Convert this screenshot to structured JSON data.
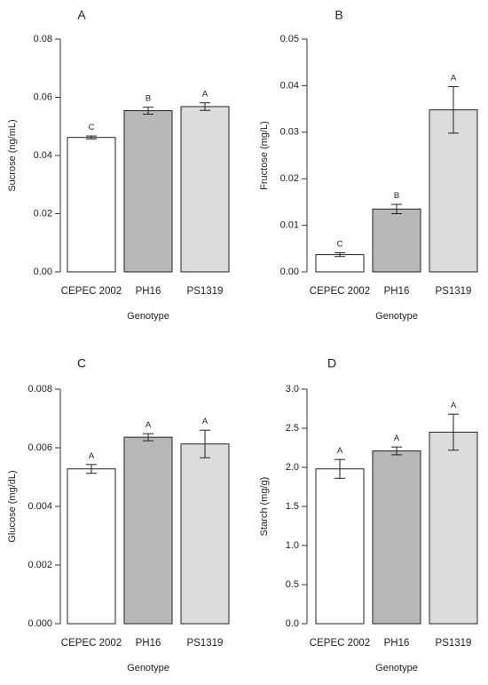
{
  "chart_data": [
    {
      "type": "bar",
      "panel_label": "A",
      "categories": [
        "CEPEC 2002",
        "PH16",
        "PS1319"
      ],
      "values": [
        0.0462,
        0.0554,
        0.0568
      ],
      "errors": [
        0.0005,
        0.0012,
        0.0013
      ],
      "significance": [
        "C",
        "B",
        "A"
      ],
      "colors": [
        "#ffffff",
        "#b7b7b7",
        "#dcdcdc"
      ],
      "xlabel": "Genotype",
      "ylabel": "Sucrose (ng/mL)",
      "ylim": [
        0,
        0.08
      ],
      "yticks": [
        "0.00",
        "0.02",
        "0.04",
        "0.06",
        "0.08"
      ],
      "grid": false
    },
    {
      "type": "bar",
      "panel_label": "B",
      "categories": [
        "CEPEC 2002",
        "PH16",
        "PS1319"
      ],
      "values": [
        0.0037,
        0.0135,
        0.0348
      ],
      "errors": [
        0.0004,
        0.001,
        0.005
      ],
      "significance": [
        "C",
        "B",
        "A"
      ],
      "colors": [
        "#ffffff",
        "#b7b7b7",
        "#dcdcdc"
      ],
      "xlabel": "Genotype",
      "ylabel": "Fructose (mg/L)",
      "ylim": [
        0,
        0.05
      ],
      "yticks": [
        "0.00",
        "0.01",
        "0.02",
        "0.03",
        "0.04",
        "0.05"
      ],
      "grid": false
    },
    {
      "type": "bar",
      "panel_label": "C",
      "categories": [
        "CEPEC 2002",
        "PH16",
        "PS1319"
      ],
      "values": [
        0.00528,
        0.00636,
        0.00613
      ],
      "errors": [
        0.00015,
        0.00012,
        0.00047
      ],
      "significance": [
        "A",
        "A",
        "A"
      ],
      "colors": [
        "#ffffff",
        "#b7b7b7",
        "#dcdcdc"
      ],
      "xlabel": "Genotype",
      "ylabel": "Glucose (mg/dL)",
      "ylim": [
        0,
        0.008
      ],
      "yticks": [
        "0.000",
        "0.002",
        "0.004",
        "0.006",
        "0.008"
      ],
      "grid": false
    },
    {
      "type": "bar",
      "panel_label": "D",
      "categories": [
        "CEPEC 2002",
        "PH16",
        "PS1319"
      ],
      "values": [
        1.98,
        2.21,
        2.45
      ],
      "errors": [
        0.12,
        0.05,
        0.23
      ],
      "significance": [
        "A",
        "A",
        "A"
      ],
      "colors": [
        "#ffffff",
        "#b7b7b7",
        "#dcdcdc"
      ],
      "xlabel": "Genotype",
      "ylabel": "Starch (mg/g)",
      "ylim": [
        0,
        3.0
      ],
      "yticks": [
        "0.0",
        "0.5",
        "1.0",
        "1.5",
        "2.0",
        "2.5",
        "3.0"
      ],
      "grid": false
    }
  ]
}
